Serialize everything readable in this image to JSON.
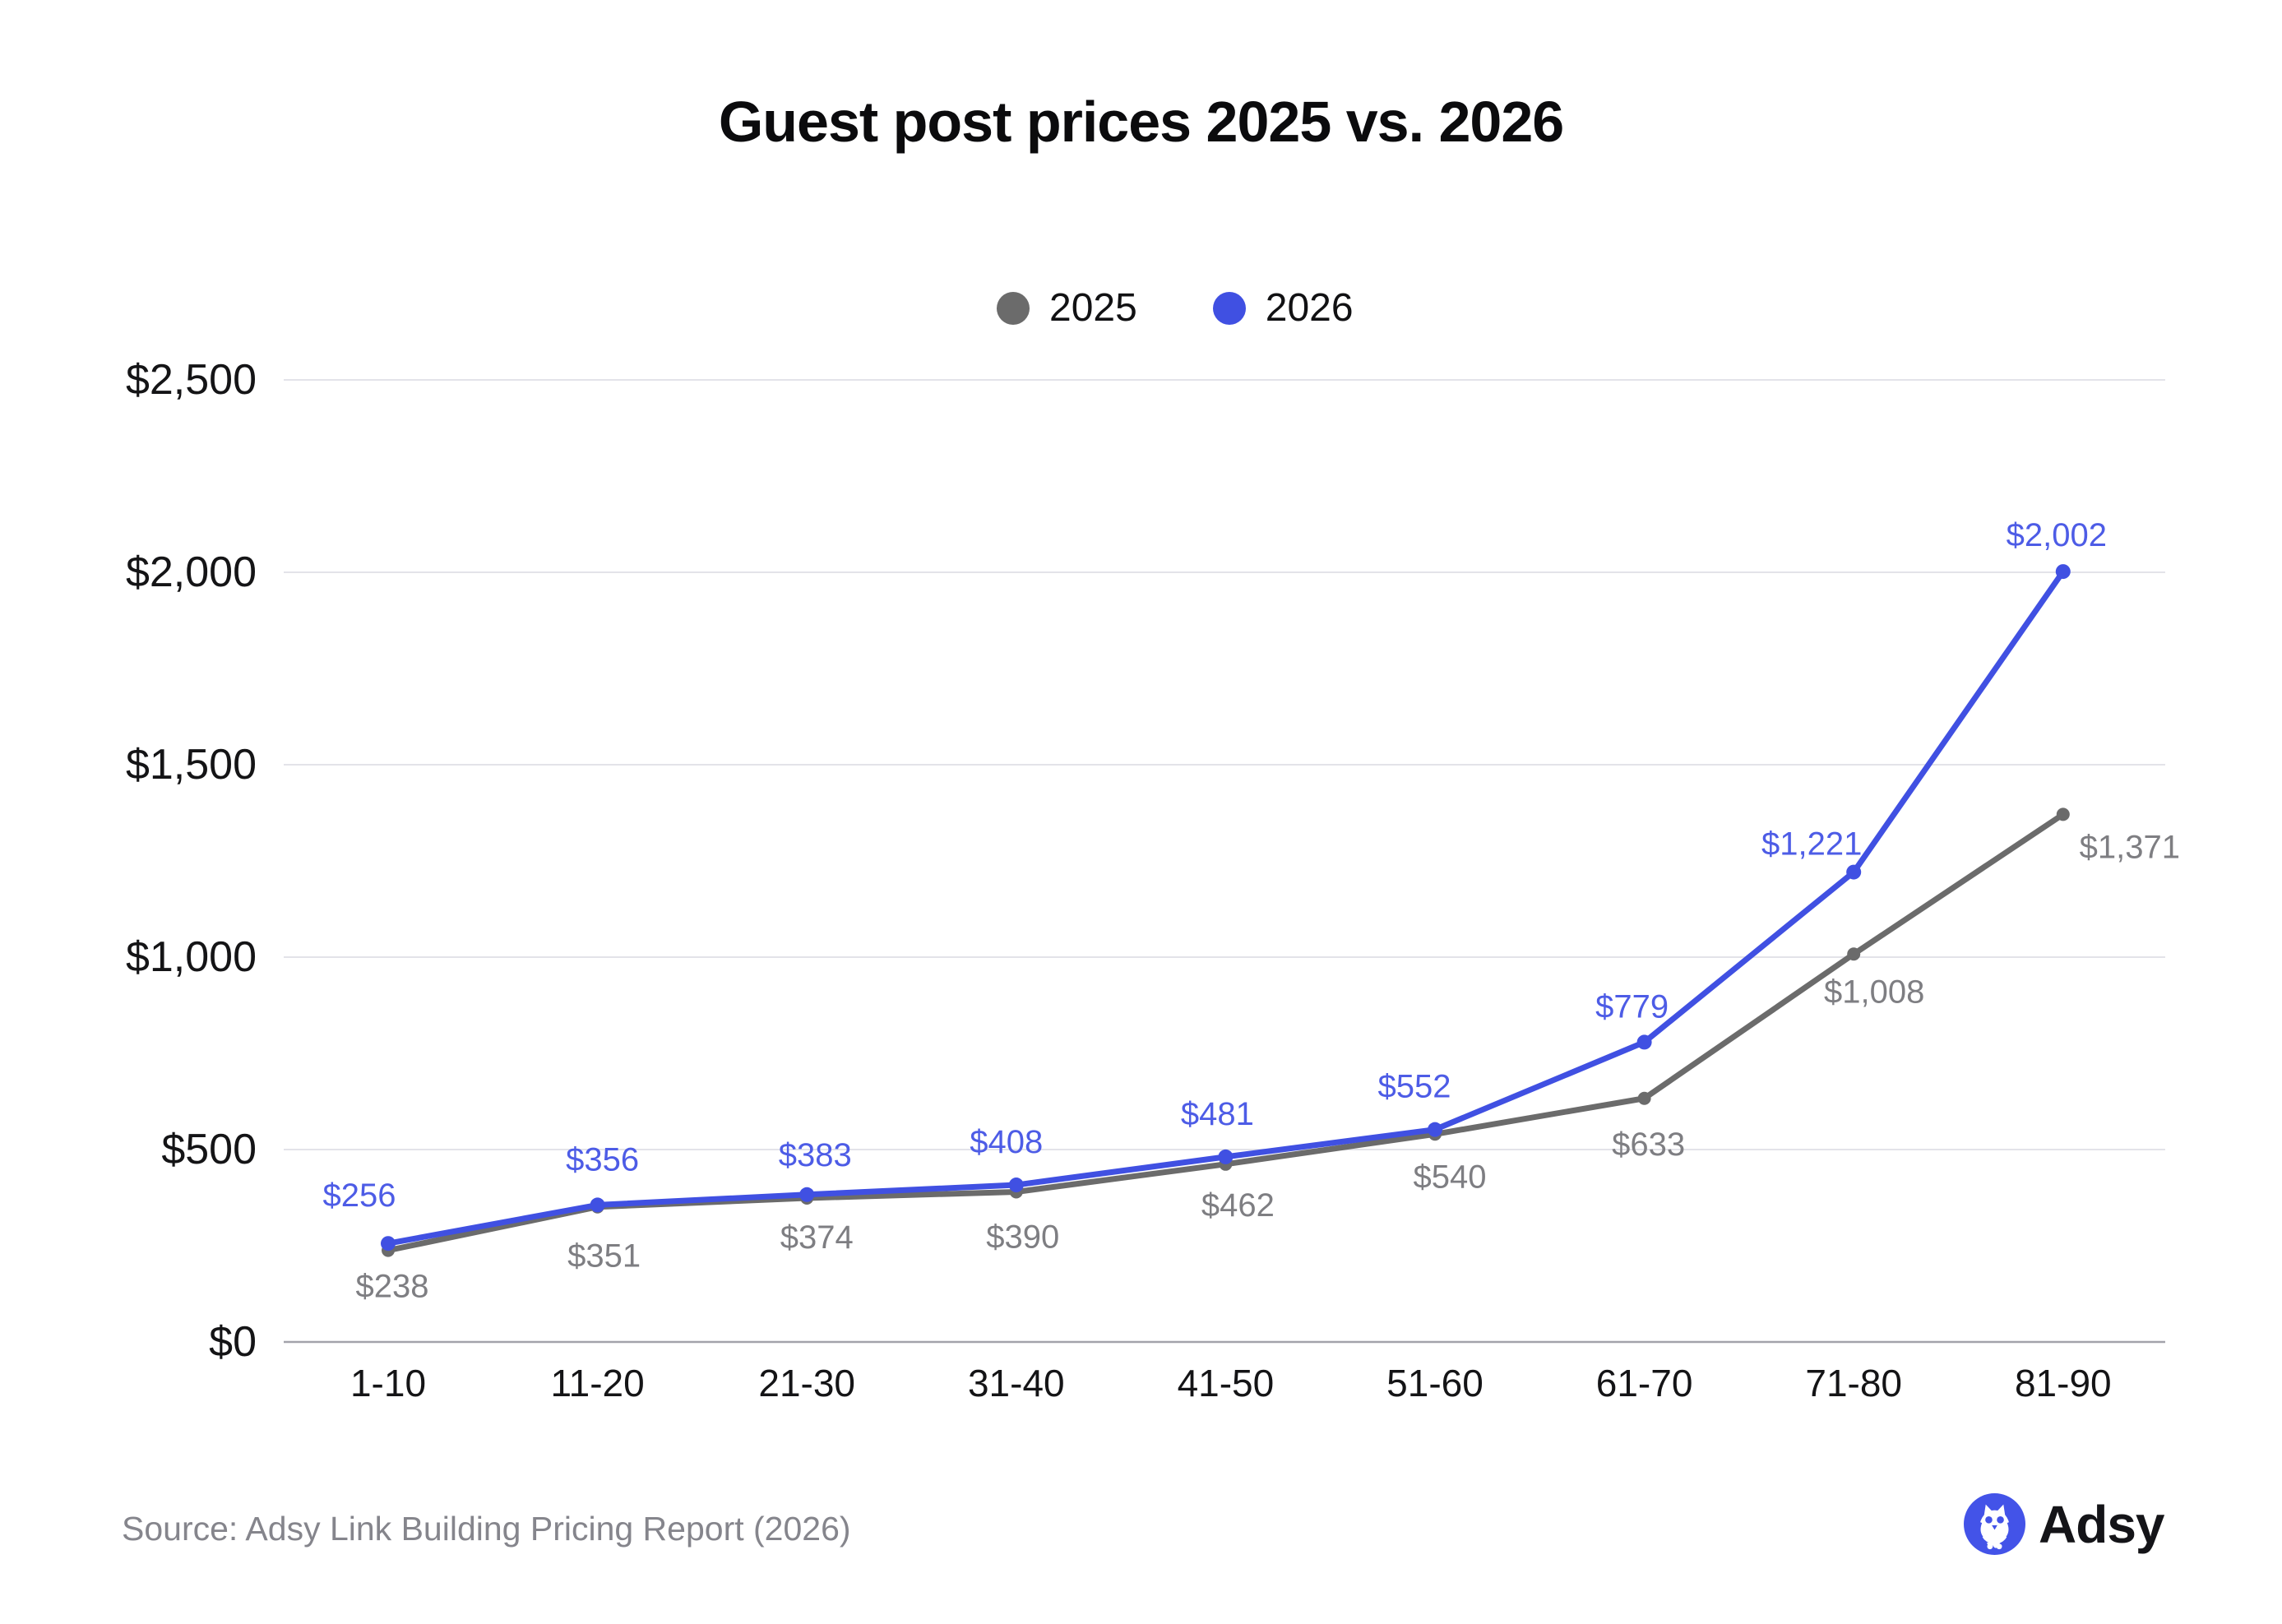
{
  "title": "Guest post prices 2025 vs. 2026",
  "chart_data": {
    "type": "line",
    "title": "Guest post prices 2025 vs. 2026",
    "categories": [
      "1-10",
      "11-20",
      "21-30",
      "31-40",
      "41-50",
      "51-60",
      "61-70",
      "71-80",
      "81-90"
    ],
    "series": [
      {
        "name": "2025",
        "color": "#6b6b6b",
        "label_color": "#7e7e82",
        "values": [
          238,
          351,
          374,
          390,
          462,
          540,
          633,
          1008,
          1371
        ],
        "data_labels": [
          "$238",
          "$351",
          "$374",
          "$390",
          "$462",
          "$540",
          "$633",
          "$1,008",
          "$1,371"
        ]
      },
      {
        "name": "2026",
        "color": "#4050e2",
        "label_color": "#4d5ce6",
        "values": [
          256,
          356,
          383,
          408,
          481,
          552,
          779,
          1221,
          2002
        ],
        "data_labels": [
          "$256",
          "$356",
          "$383",
          "$408",
          "$481",
          "$552",
          "$779",
          "$1,221",
          "$2,002"
        ]
      }
    ],
    "y_ticks": [
      {
        "value": 0,
        "label": "$0"
      },
      {
        "value": 500,
        "label": "$500"
      },
      {
        "value": 1000,
        "label": "$1,000"
      },
      {
        "value": 1500,
        "label": "$1,500"
      },
      {
        "value": 2000,
        "label": "$2,000"
      },
      {
        "value": 2500,
        "label": "$2,500"
      }
    ],
    "ylim": [
      0,
      2500
    ],
    "xlabel": "",
    "ylabel": "",
    "grid": true,
    "legend_position": "top",
    "grid_color": "#e3e3e9",
    "axis_line_color": "#a3a3ab",
    "tick_label_color": "#141416"
  },
  "footer": {
    "source": "Source: Adsy Link Building Pricing Report (2026)",
    "brand": "Adsy",
    "brand_color": "#4353e8"
  }
}
